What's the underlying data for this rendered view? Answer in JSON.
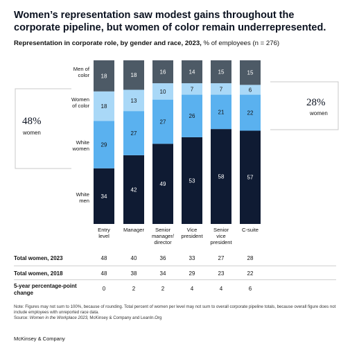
{
  "title": "Women’s representation saw modest gains throughout the corporate pipeline, but women of color remain underrepresented.",
  "subtitle_bold": "Representation in corporate role, by gender and race, 2023,",
  "subtitle_rest": " % of employees (n = 276)",
  "chart_data": {
    "type": "bar",
    "stacked": true,
    "categories": [
      "Entry level",
      "Manager",
      "Senior manager/ director",
      "Vice president",
      "Senior vice president",
      "C-suite"
    ],
    "series": [
      {
        "name": "White men",
        "color": "#0f1b33",
        "values": [
          34,
          42,
          49,
          53,
          58,
          57
        ]
      },
      {
        "name": "White women",
        "color": "#5ab1ef",
        "values": [
          29,
          27,
          27,
          26,
          21,
          22
        ]
      },
      {
        "name": "Women of color",
        "color": "#a9d8f7",
        "values": [
          18,
          13,
          10,
          7,
          7,
          6
        ]
      },
      {
        "name": "Men of color",
        "color": "#4d5a66",
        "values": [
          18,
          18,
          16,
          14,
          15,
          15
        ]
      }
    ],
    "ylim": [
      0,
      100
    ]
  },
  "category_labels": [
    [
      "Entry",
      "level"
    ],
    [
      "Manager"
    ],
    [
      "Senior",
      "manager/",
      "director"
    ],
    [
      "Vice",
      "president"
    ],
    [
      "Senior",
      "vice",
      "president"
    ],
    [
      "C-suite"
    ]
  ],
  "series_labels": {
    "men_of_color": [
      "Men of",
      "color"
    ],
    "women_of_color": [
      "Women",
      "of color"
    ],
    "white_women": [
      "White",
      "women"
    ],
    "white_men": [
      "White",
      "men"
    ]
  },
  "callouts": {
    "left_value": "48%",
    "left_label": "women",
    "right_value": "28%",
    "right_label": "women"
  },
  "stats": [
    {
      "label": "Total women, 2023",
      "values": [
        "48",
        "40",
        "36",
        "33",
        "27",
        "28"
      ]
    },
    {
      "label": "Total women, 2018",
      "values": [
        "48",
        "38",
        "34",
        "29",
        "23",
        "22"
      ]
    },
    {
      "label": "5-year percentage-point change",
      "values": [
        "0",
        "2",
        "2",
        "4",
        "4",
        "6"
      ]
    }
  ],
  "note": "Note: Figures may not sum to 100%, because of rounding. Total percent of women per level may not sum to overall corporate pipeline totals, because overall figure does not include employees with unreported race data.",
  "source_prefix": "Source: ",
  "source_italic": "Women in the Workplace 2023,",
  "source_rest": " McKinsey & Company and LeanIn.Org",
  "brand": "McKinsey & Company"
}
